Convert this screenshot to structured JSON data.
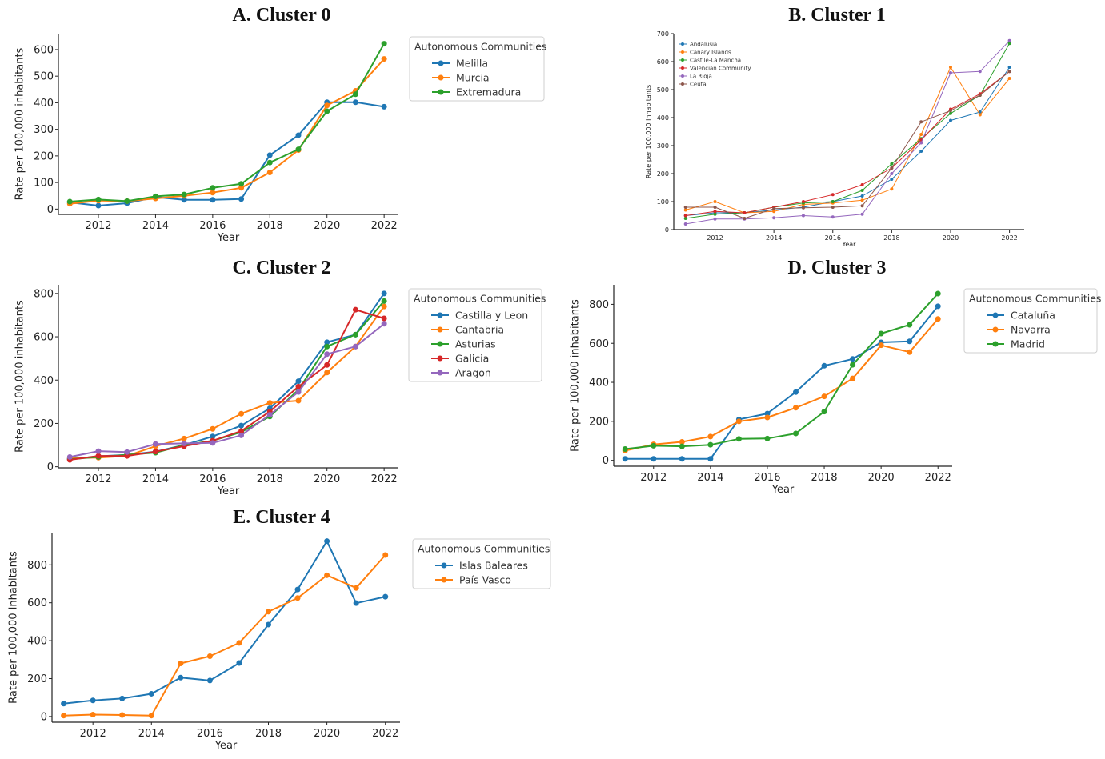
{
  "chart_data": [
    {
      "id": "A",
      "type": "line",
      "title": "A. Cluster 0",
      "xlabel": "Year",
      "ylabel": "Rate per 100,000 inhabitants",
      "x": [
        2011,
        2012,
        2013,
        2014,
        2015,
        2016,
        2017,
        2018,
        2019,
        2020,
        2021,
        2022
      ],
      "xticks": [
        2012,
        2014,
        2016,
        2018,
        2020,
        2022
      ],
      "yticks": [
        0,
        100,
        200,
        300,
        400,
        500,
        600
      ],
      "xlim": [
        2010.6,
        2022.5
      ],
      "ylim": [
        -20,
        660
      ],
      "legend_title": "Autonomous Communities",
      "legend_position": "outside-right",
      "series": [
        {
          "name": "Melilla",
          "color": "#1f77b4",
          "values": [
            25,
            13,
            22,
            45,
            35,
            35,
            38,
            203,
            278,
            402,
            402,
            385
          ]
        },
        {
          "name": "Murcia",
          "color": "#ff7f0e",
          "values": [
            20,
            32,
            30,
            40,
            50,
            62,
            80,
            138,
            222,
            390,
            445,
            565
          ]
        },
        {
          "name": "Extremadura",
          "color": "#2ca02c",
          "values": [
            28,
            36,
            30,
            48,
            55,
            80,
            95,
            175,
            225,
            368,
            432,
            622
          ]
        }
      ]
    },
    {
      "id": "B",
      "type": "line",
      "title": "B. Cluster 1",
      "xlabel": "Year",
      "ylabel": "Rate per 100,000 inhabitants",
      "x": [
        2011,
        2012,
        2013,
        2014,
        2015,
        2016,
        2017,
        2018,
        2019,
        2020,
        2021,
        2022
      ],
      "xticks": [
        2012,
        2014,
        2016,
        2018,
        2020,
        2022
      ],
      "yticks": [
        0,
        100,
        200,
        300,
        400,
        500,
        600,
        700
      ],
      "xlim": [
        2010.6,
        2022.5
      ],
      "ylim": [
        0,
        700
      ],
      "legend_title": "",
      "legend_position": "top-left",
      "series": [
        {
          "name": "Andalusia",
          "color": "#1f77b4",
          "values": [
            50,
            60,
            60,
            70,
            80,
            100,
            120,
            180,
            280,
            390,
            420,
            580
          ]
        },
        {
          "name": "Canary Islands",
          "color": "#ff7f0e",
          "values": [
            70,
            100,
            60,
            65,
            90,
            95,
            105,
            145,
            340,
            580,
            410,
            540
          ]
        },
        {
          "name": "Castile-La Mancha",
          "color": "#2ca02c",
          "values": [
            40,
            55,
            60,
            80,
            95,
            100,
            140,
            235,
            325,
            415,
            480,
            665
          ]
        },
        {
          "name": "Valencian Community",
          "color": "#d62728",
          "values": [
            50,
            65,
            60,
            80,
            100,
            125,
            160,
            220,
            320,
            430,
            485,
            565
          ]
        },
        {
          "name": "La Rioja",
          "color": "#9467bd",
          "values": [
            20,
            38,
            38,
            42,
            50,
            45,
            55,
            200,
            310,
            560,
            565,
            675
          ]
        },
        {
          "name": "Ceuta",
          "color": "#8c564b",
          "values": [
            80,
            80,
            40,
            75,
            78,
            80,
            85,
            220,
            385,
            425,
            480,
            565
          ]
        }
      ]
    },
    {
      "id": "C",
      "type": "line",
      "title": "C. Cluster 2",
      "xlabel": "Year",
      "ylabel": "Rate per 100,000 inhabitants",
      "x": [
        2011,
        2012,
        2013,
        2014,
        2015,
        2016,
        2017,
        2018,
        2019,
        2020,
        2021,
        2022
      ],
      "xticks": [
        2012,
        2014,
        2016,
        2018,
        2020,
        2022
      ],
      "yticks": [
        0,
        200,
        400,
        600,
        800
      ],
      "xlim": [
        2010.6,
        2022.5
      ],
      "ylim": [
        -5,
        840
      ],
      "legend_title": "Autonomous Communities",
      "legend_position": "outside-right",
      "series": [
        {
          "name": "Castilla y Leon",
          "color": "#1f77b4",
          "values": [
            35,
            48,
            55,
            70,
            100,
            140,
            190,
            270,
            395,
            575,
            610,
            800
          ]
        },
        {
          "name": "Cantabria",
          "color": "#ff7f0e",
          "values": [
            40,
            42,
            50,
            95,
            130,
            175,
            245,
            295,
            305,
            435,
            555,
            740
          ]
        },
        {
          "name": "Asturias",
          "color": "#2ca02c",
          "values": [
            35,
            45,
            55,
            65,
            100,
            120,
            160,
            232,
            355,
            555,
            610,
            765
          ]
        },
        {
          "name": "Galicia",
          "color": "#d62728",
          "values": [
            32,
            50,
            50,
            70,
            95,
            120,
            165,
            255,
            370,
            470,
            725,
            685
          ]
        },
        {
          "name": "Aragon",
          "color": "#9467bd",
          "values": [
            45,
            72,
            68,
            105,
            108,
            110,
            145,
            240,
            345,
            520,
            555,
            660
          ]
        }
      ]
    },
    {
      "id": "D",
      "type": "line",
      "title": "D. Cluster 3",
      "xlabel": "Year",
      "ylabel": "Rate per 100,000 inhabitants",
      "x": [
        2011,
        2012,
        2013,
        2014,
        2015,
        2016,
        2017,
        2018,
        2019,
        2020,
        2021,
        2022
      ],
      "xticks": [
        2012,
        2014,
        2016,
        2018,
        2020,
        2022
      ],
      "yticks": [
        0,
        200,
        400,
        600,
        800
      ],
      "xlim": [
        2010.6,
        2022.5
      ],
      "ylim": [
        -30,
        900
      ],
      "legend_title": "Autonomous Communities",
      "legend_position": "outside-right",
      "series": [
        {
          "name": "Cataluña",
          "color": "#1f77b4",
          "values": [
            8,
            8,
            8,
            8,
            210,
            240,
            350,
            485,
            520,
            605,
            610,
            790
          ]
        },
        {
          "name": "Navarra",
          "color": "#ff7f0e",
          "values": [
            50,
            82,
            95,
            122,
            200,
            220,
            270,
            328,
            420,
            590,
            555,
            725
          ]
        },
        {
          "name": "Madrid",
          "color": "#2ca02c",
          "values": [
            58,
            75,
            72,
            80,
            110,
            112,
            138,
            250,
            490,
            650,
            695,
            855
          ]
        }
      ]
    },
    {
      "id": "E",
      "type": "line",
      "title": "E. Cluster 4",
      "xlabel": "Year",
      "ylabel": "Rate per 100,000 inhabitants",
      "x": [
        2011,
        2012,
        2013,
        2014,
        2015,
        2016,
        2017,
        2018,
        2019,
        2020,
        2021,
        2022
      ],
      "xticks": [
        2012,
        2014,
        2016,
        2018,
        2020,
        2022
      ],
      "yticks": [
        0,
        200,
        400,
        600,
        800
      ],
      "xlim": [
        2010.6,
        2022.5
      ],
      "ylim": [
        -30,
        970
      ],
      "legend_title": "Autonomous Communities",
      "legend_position": "outside-right",
      "series": [
        {
          "name": "Islas Baleares",
          "color": "#1f77b4",
          "values": [
            68,
            85,
            95,
            120,
            205,
            190,
            282,
            485,
            670,
            925,
            598,
            632
          ]
        },
        {
          "name": "País Vasco",
          "color": "#ff7f0e",
          "values": [
            5,
            10,
            8,
            5,
            280,
            318,
            388,
            553,
            625,
            745,
            678,
            852
          ]
        }
      ]
    }
  ]
}
